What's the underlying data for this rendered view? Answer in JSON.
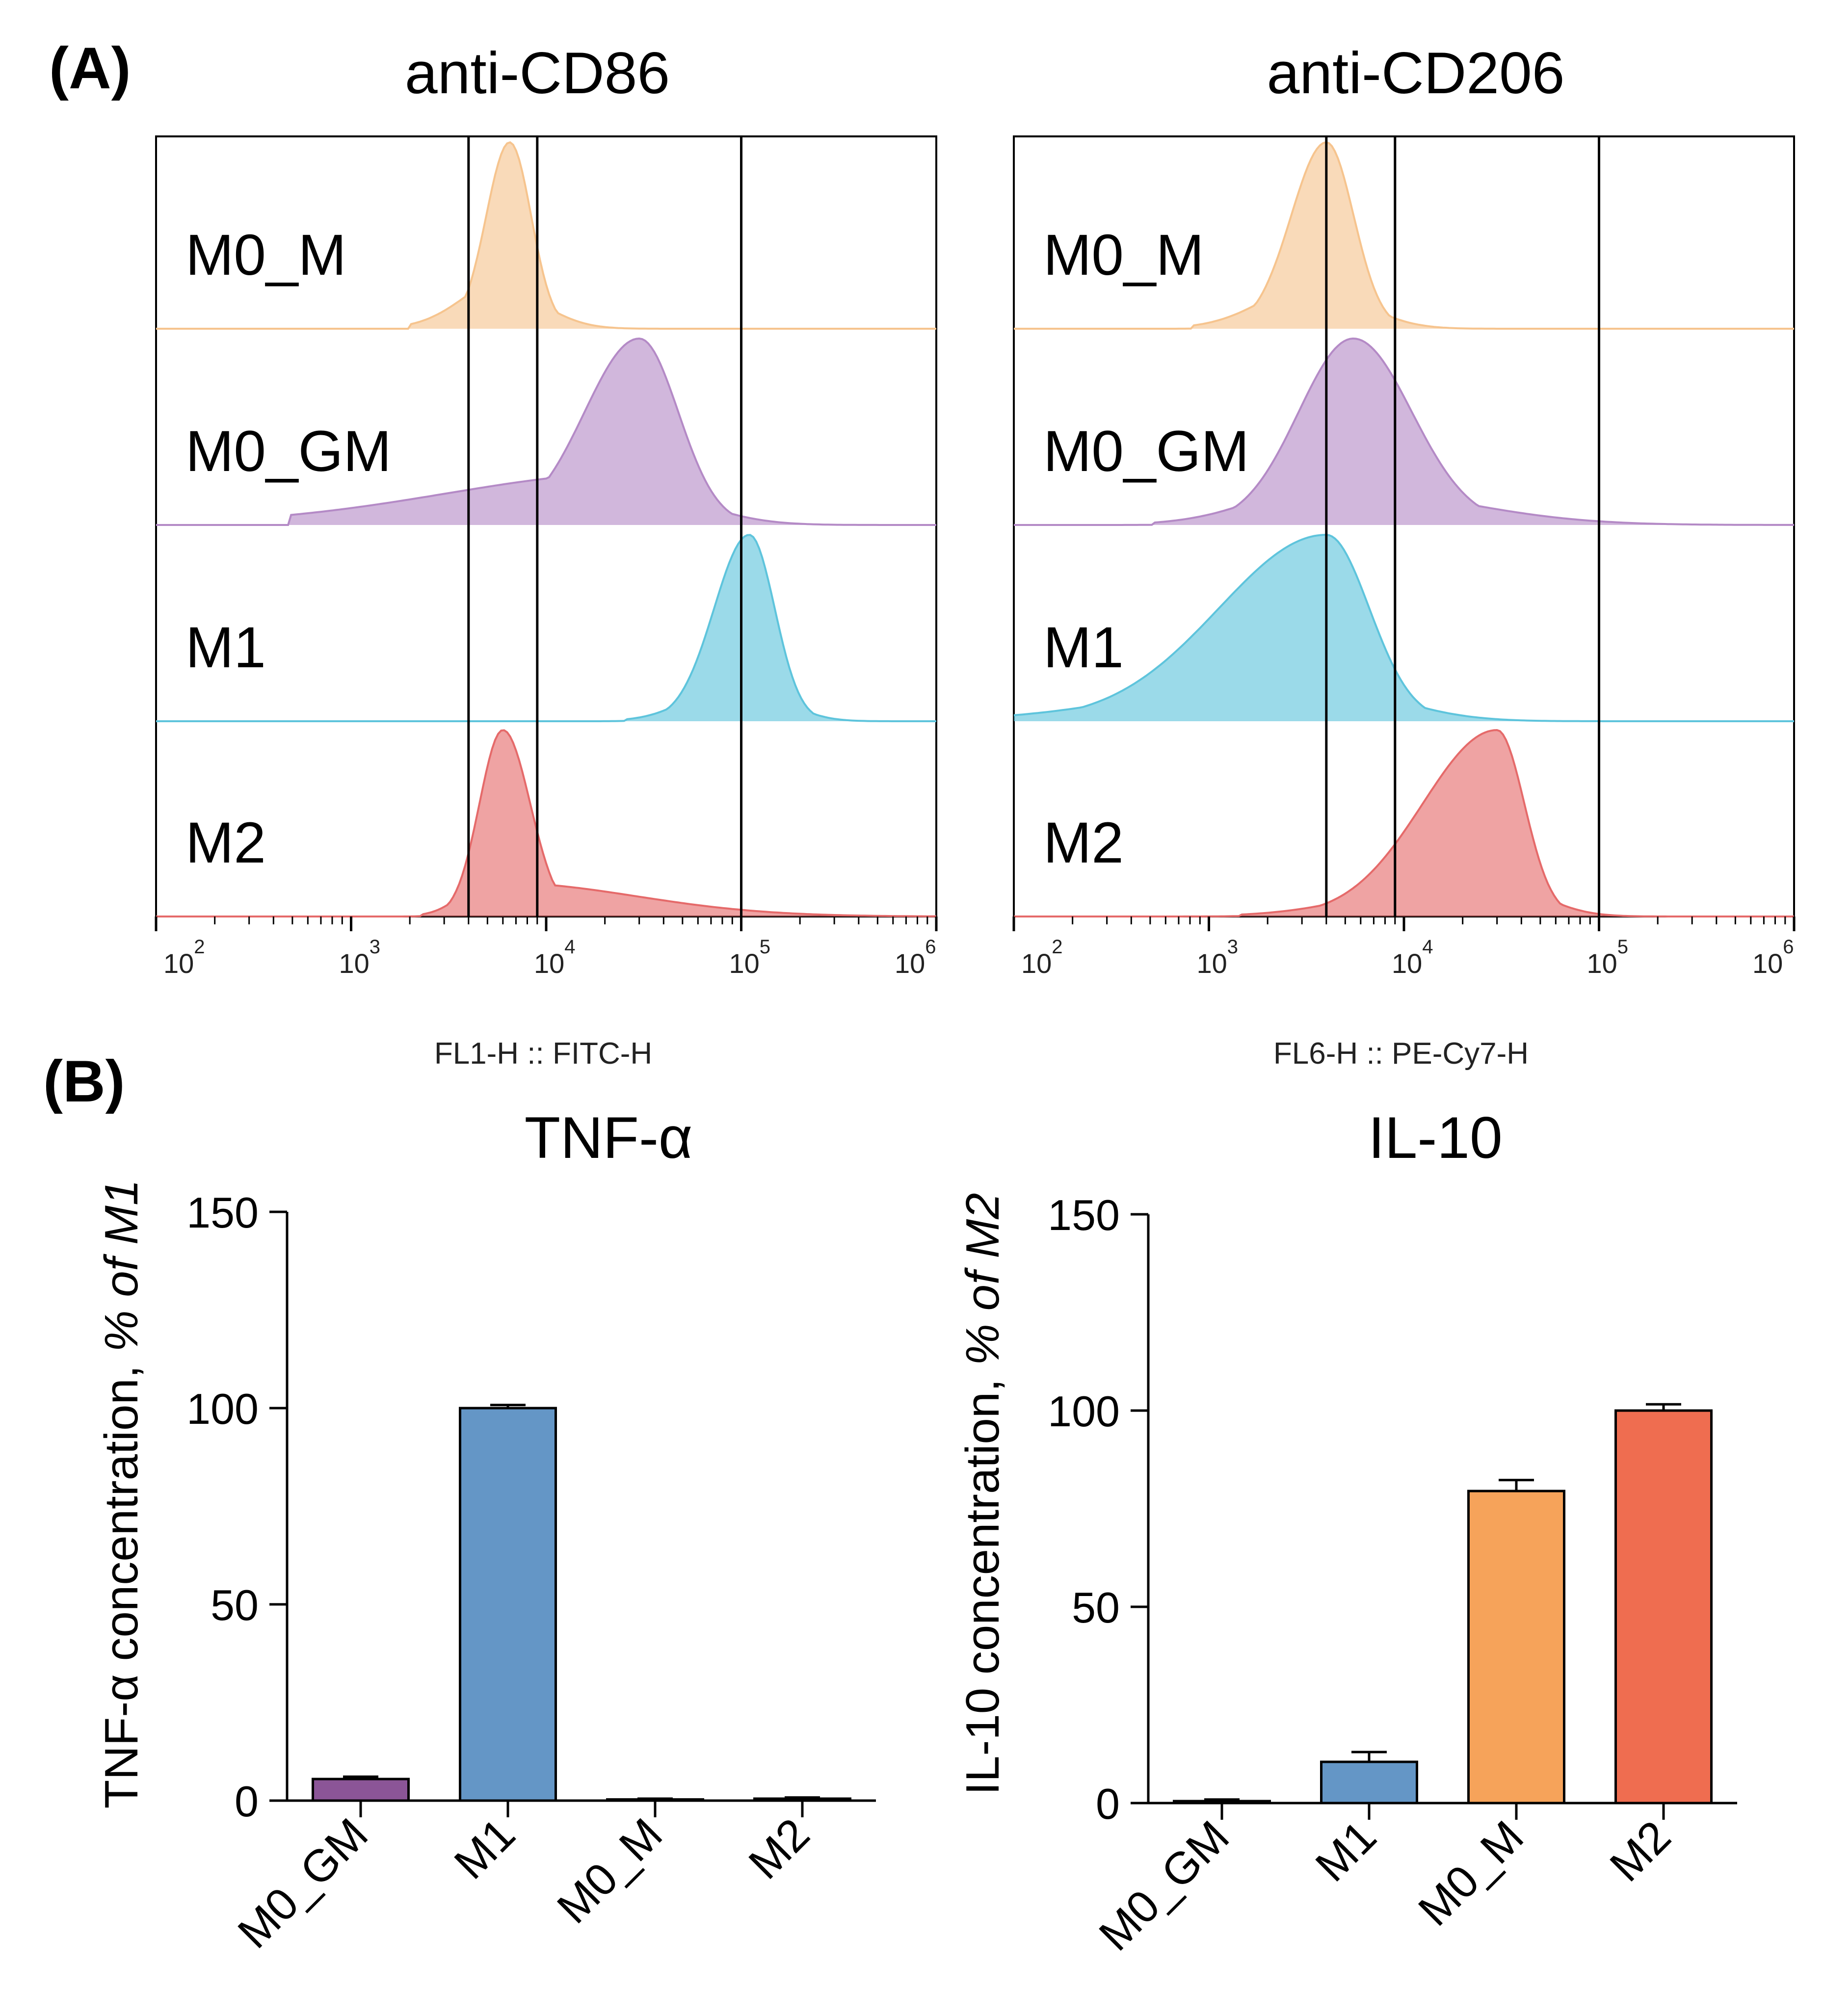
{
  "panel_labels": {
    "a": "(A)",
    "b": "(B)"
  },
  "chart_data": [
    {
      "type": "histogram",
      "id": "cd86",
      "title": "anti-CD86",
      "xlabel": "FL1-H :: FITC-H",
      "xscale": "log",
      "xlim": [
        100,
        1000000
      ],
      "tick_base": "10",
      "tick_exponents": [
        "2",
        "3",
        "4",
        "5",
        "6"
      ],
      "gates": [
        4000,
        9000,
        100000
      ],
      "series": [
        {
          "name": "M0_M",
          "color": "#f6c48e",
          "peak": 6500,
          "spread_left": 0.12,
          "spread_right": 0.11,
          "tail_left": 0.05,
          "tail_right": 0.03
        },
        {
          "name": "M0_GM",
          "color": "#b48ac6",
          "peak": 30000,
          "spread_left": 0.28,
          "spread_right": 0.2,
          "tail_left": 0.32,
          "tail_right": 0.04
        },
        {
          "name": "M1",
          "color": "#5ec4dc",
          "peak": 110000,
          "spread_left": 0.18,
          "spread_right": 0.13,
          "tail_left": 0.03,
          "tail_right": 0.02
        },
        {
          "name": "M2",
          "color": "#e56a6a",
          "peak": 6000,
          "spread_left": 0.12,
          "spread_right": 0.14,
          "tail_left": 0.02,
          "tail_right": 0.18
        }
      ]
    },
    {
      "type": "histogram",
      "id": "cd206",
      "title": "anti-CD206",
      "xlabel": "FL6-H :: PE-Cy7-H",
      "xscale": "log",
      "xlim": [
        100,
        1000000
      ],
      "tick_base": "10",
      "tick_exponents": [
        "2",
        "3",
        "4",
        "5",
        "6"
      ],
      "gates": [
        4000,
        9000,
        100000
      ],
      "series": [
        {
          "name": "M0_M",
          "color": "#f6c48e",
          "peak": 4000,
          "spread_left": 0.18,
          "spread_right": 0.14,
          "tail_left": 0.05,
          "tail_right": 0.03
        },
        {
          "name": "M0_GM",
          "color": "#b48ac6",
          "peak": 5500,
          "spread_left": 0.28,
          "spread_right": 0.3,
          "tail_left": 0.06,
          "tail_right": 0.1
        },
        {
          "name": "M1",
          "color": "#5ec4dc",
          "peak": 4000,
          "spread_left": 0.55,
          "spread_right": 0.22,
          "tail_left": 0.1,
          "tail_right": 0.05
        },
        {
          "name": "M2",
          "color": "#e56a6a",
          "peak": 30000,
          "spread_left": 0.38,
          "spread_right": 0.14,
          "tail_left": 0.06,
          "tail_right": 0.03
        }
      ]
    },
    {
      "type": "bar",
      "id": "tnf",
      "title": "TNF-α",
      "ylabel_prefix": "TNF-α concentration, ",
      "ylabel_italic": "% of M1",
      "ylim": [
        0,
        150
      ],
      "yticks": [
        "0",
        "50",
        "100",
        "150"
      ],
      "categories": [
        "M0_GM",
        "M1",
        "M0_M",
        "M2"
      ],
      "values": [
        5.5,
        100,
        0.3,
        0.5
      ],
      "errors": [
        0.6,
        0.8,
        0.2,
        0.3
      ],
      "colors": [
        "#8b5597",
        "#6496c6",
        "#f6a35a",
        "#ef6d50"
      ]
    },
    {
      "type": "bar",
      "id": "il10",
      "title": "IL-10",
      "ylabel_prefix": "IL-10 concentration, ",
      "ylabel_italic": "% of M2",
      "ylim": [
        0,
        150
      ],
      "yticks": [
        "0",
        "50",
        "100",
        "150"
      ],
      "categories": [
        "M0_GM",
        "M1",
        "M0_M",
        "M2"
      ],
      "values": [
        0.5,
        10.5,
        79.5,
        100
      ],
      "errors": [
        0.4,
        2.5,
        2.8,
        1.6
      ],
      "colors": [
        "#8b5597",
        "#6496c6",
        "#f6a35a",
        "#ef6d50"
      ]
    }
  ]
}
